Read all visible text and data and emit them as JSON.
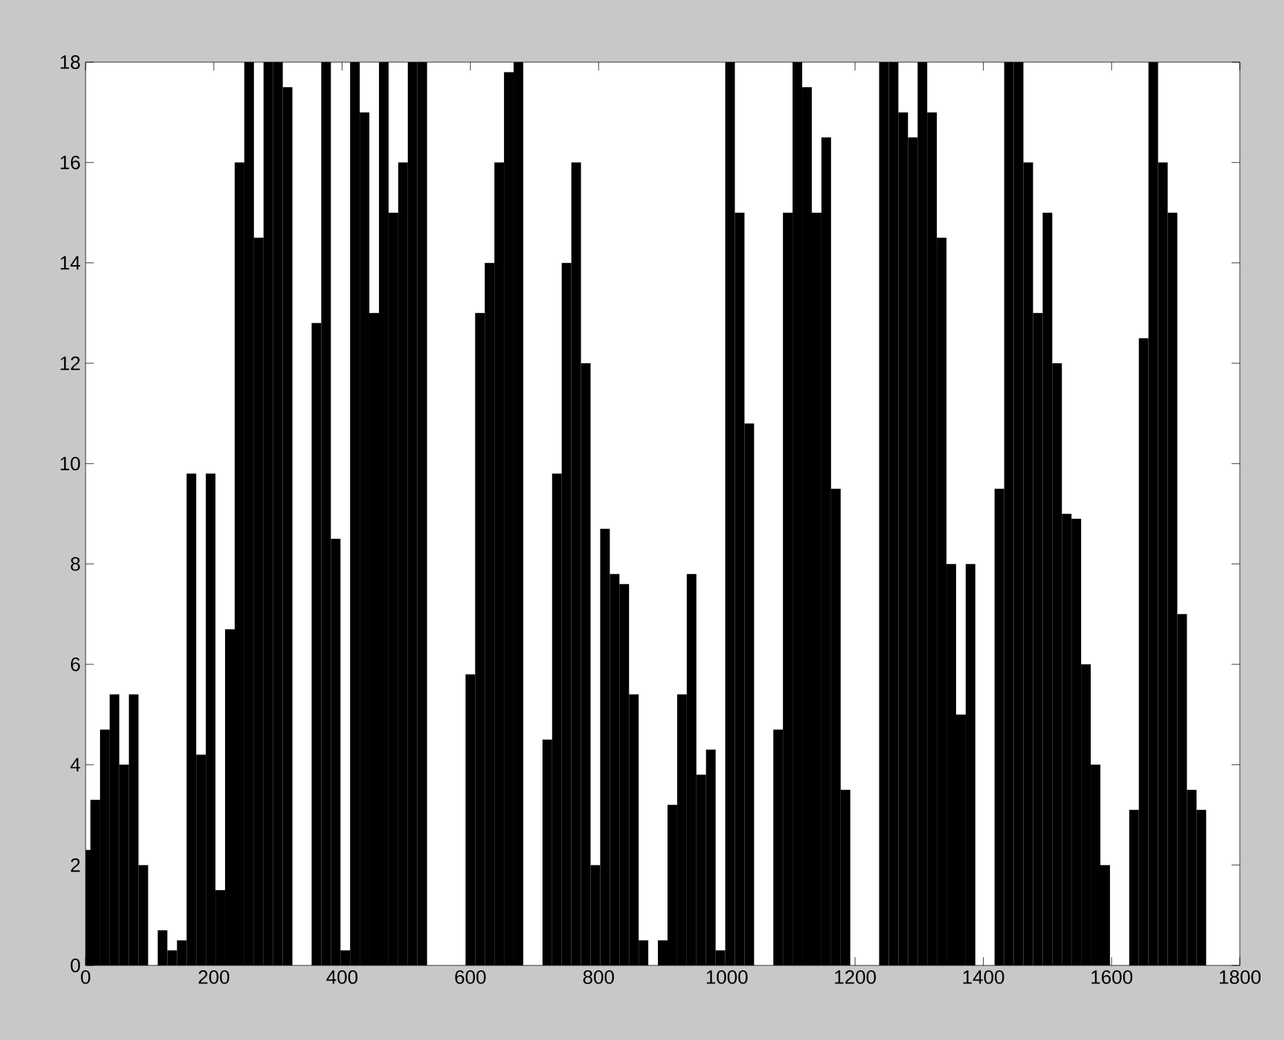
{
  "chart_data": {
    "type": "bar",
    "xlim": [
      0,
      1800
    ],
    "ylim": [
      0,
      18
    ],
    "xticks": [
      0,
      200,
      400,
      600,
      800,
      1000,
      1200,
      1400,
      1600,
      1800
    ],
    "yticks": [
      0,
      2,
      4,
      6,
      8,
      10,
      12,
      14,
      16,
      18
    ],
    "grid": false,
    "x": [
      0,
      15,
      30,
      45,
      60,
      75,
      90,
      105,
      120,
      135,
      150,
      165,
      180,
      195,
      210,
      225,
      240,
      255,
      270,
      285,
      300,
      315,
      330,
      345,
      360,
      375,
      390,
      405,
      420,
      435,
      450,
      465,
      480,
      495,
      510,
      525,
      540,
      555,
      570,
      585,
      600,
      615,
      630,
      645,
      660,
      675,
      690,
      705,
      720,
      735,
      750,
      765,
      780,
      795,
      810,
      825,
      840,
      855,
      870,
      885,
      900,
      915,
      930,
      945,
      960,
      975,
      990,
      1005,
      1020,
      1035,
      1050,
      1065,
      1080,
      1095,
      1110,
      1125,
      1140,
      1155,
      1170,
      1185,
      1200,
      1215,
      1230,
      1245,
      1260,
      1275,
      1290,
      1305,
      1320,
      1335,
      1350,
      1365,
      1380,
      1395,
      1410,
      1425,
      1440,
      1455,
      1470,
      1485,
      1500,
      1515,
      1530,
      1545,
      1560,
      1575,
      1590,
      1605,
      1620,
      1635,
      1650,
      1665,
      1680,
      1695,
      1710,
      1725,
      1740
    ],
    "series": [
      {
        "color": "#000000",
        "values": [
          2.3,
          3.3,
          4.7,
          5.4,
          4.0,
          5.4,
          2.0,
          0,
          0.7,
          0.3,
          0.5,
          9.8,
          4.2,
          9.8,
          1.5,
          6.7,
          16,
          18,
          14.5,
          18,
          18,
          17.5,
          0,
          0,
          12.8,
          18,
          8.5,
          0.3,
          18,
          17,
          13,
          18,
          15,
          16,
          18,
          18,
          0,
          0,
          0,
          0,
          5.8,
          13,
          14,
          16,
          17.8,
          18,
          0,
          0,
          4.5,
          9.8,
          14,
          16,
          12,
          2,
          8.7,
          7.8,
          7.6,
          5.4,
          0.5,
          0,
          0.5,
          3.2,
          5.4,
          7.8,
          3.8,
          4.3,
          0.3,
          18,
          15,
          10.8,
          0,
          0,
          4.7,
          15,
          18,
          17.5,
          15,
          16.5,
          9.5,
          3.5,
          0,
          0,
          0,
          18,
          18,
          17,
          16.5,
          18,
          17,
          14.5,
          8,
          5,
          8,
          0,
          0,
          9.5,
          18,
          18,
          16,
          13,
          15,
          12,
          9,
          8.9,
          6,
          4,
          2,
          0,
          0,
          3.1,
          12.5,
          18,
          16,
          15,
          7,
          3.5,
          3.1
        ]
      }
    ]
  }
}
